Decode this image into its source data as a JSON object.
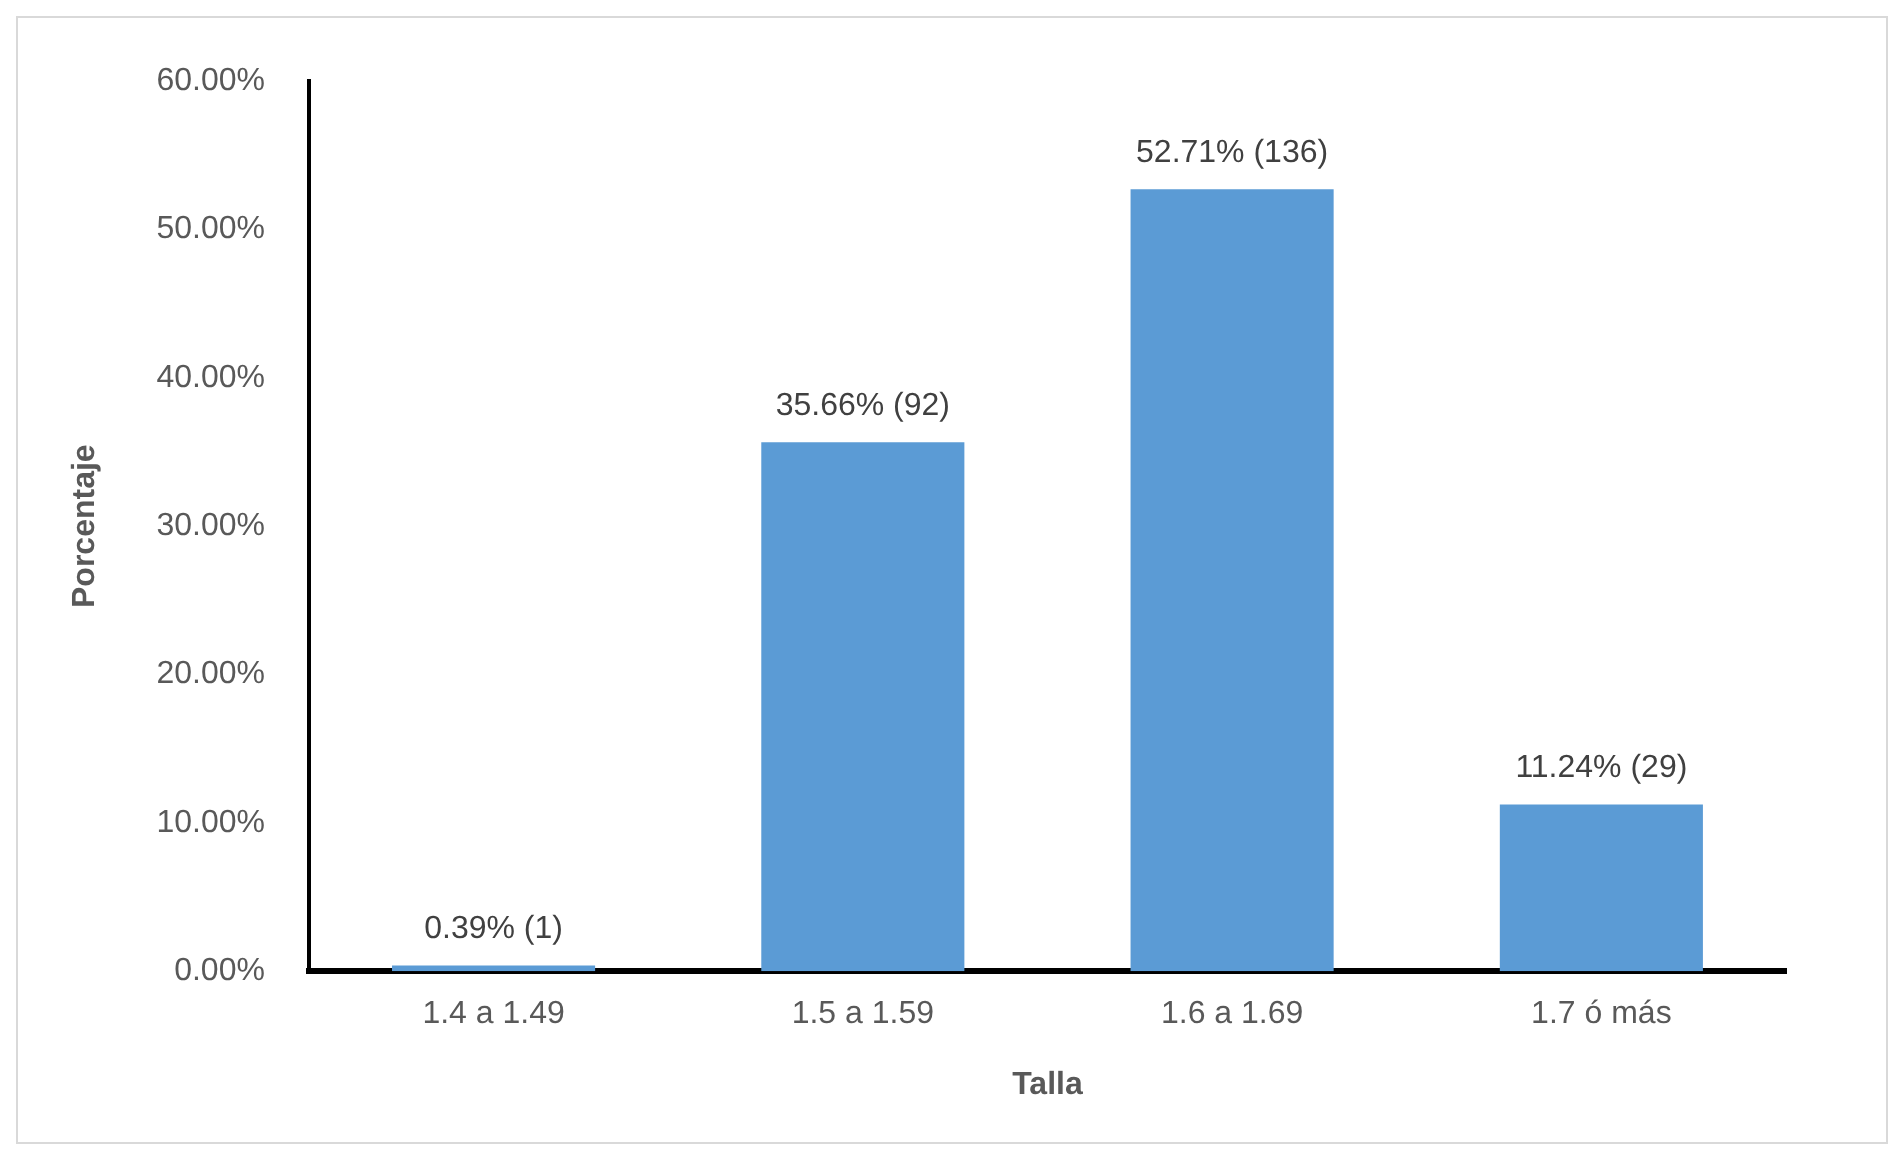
{
  "chart_data": {
    "type": "bar",
    "xlabel": "Talla",
    "ylabel": "Porcentaje",
    "categories": [
      "1.4 a 1.49",
      "1.5 a 1.59",
      "1.6 a 1.69",
      "1.7 ó más"
    ],
    "values": [
      0.39,
      35.66,
      52.71,
      11.24
    ],
    "value_labels": [
      "0.39% (1)",
      "35.66% (92)",
      "52.71% (136)",
      "11.24% (29)"
    ],
    "color": "#5b9bd5",
    "ylim": [
      0,
      60
    ],
    "yticks": [
      {
        "value": 0,
        "label": "0.00%"
      },
      {
        "value": 10,
        "label": "10.00%"
      },
      {
        "value": 20,
        "label": "20.00%"
      },
      {
        "value": 30,
        "label": "30.00%"
      },
      {
        "value": 40,
        "label": "40.00%"
      },
      {
        "value": 50,
        "label": "50.00%"
      },
      {
        "value": 60,
        "label": "60.00%"
      }
    ],
    "grid": false,
    "legend": false
  }
}
